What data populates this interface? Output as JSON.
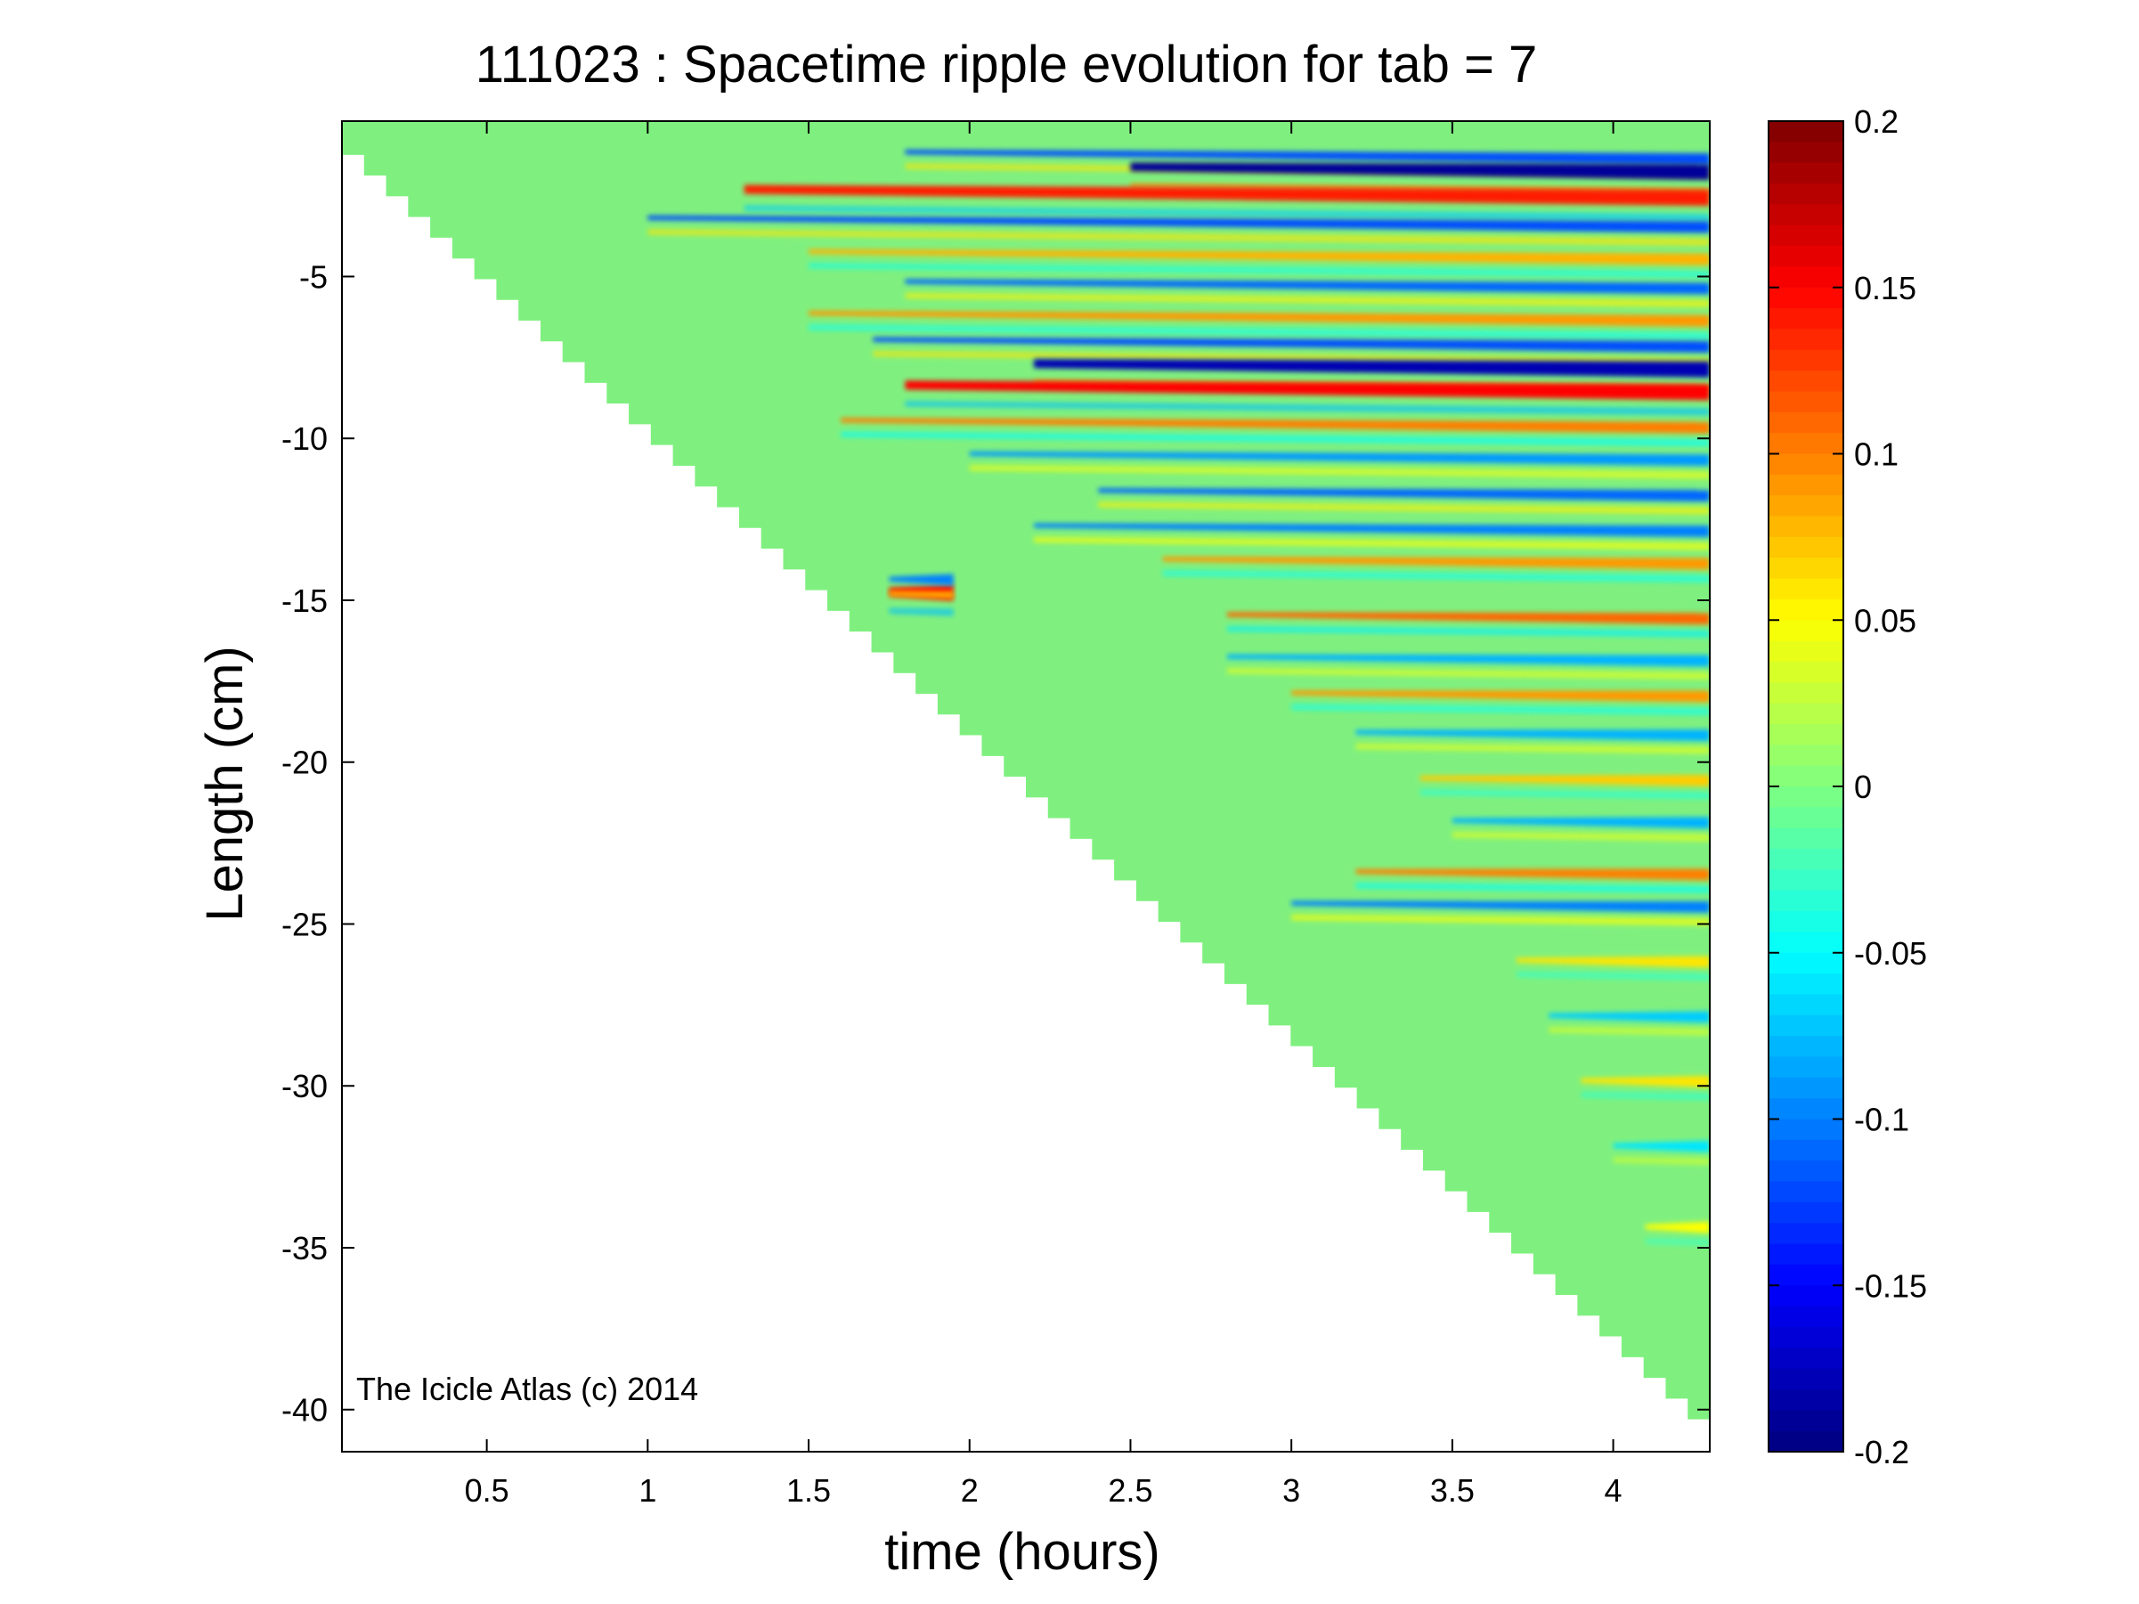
{
  "chart_data": {
    "type": "heatmap",
    "title": "111023 : Spacetime ripple evolution for tab = 7",
    "xlabel": "time (hours)",
    "ylabel": "Length (cm)",
    "xlim": [
      0.05,
      4.3
    ],
    "ylim": [
      -41.3,
      -0.2
    ],
    "x_ticks": [
      0.5,
      1,
      1.5,
      2,
      2.5,
      3,
      3.5,
      4
    ],
    "x_tick_labels": [
      "0.5",
      "1",
      "1.5",
      "2",
      "2.5",
      "3",
      "3.5",
      "4"
    ],
    "y_ticks": [
      -5,
      -10,
      -15,
      -20,
      -25,
      -30,
      -35,
      -40
    ],
    "y_tick_labels": [
      "-5",
      "-10",
      "-15",
      "-20",
      "-25",
      "-30",
      "-35",
      "-40"
    ],
    "colorbar": {
      "colormap": "jet",
      "range": [
        -0.2,
        0.2
      ],
      "ticks": [
        0.2,
        0.15,
        0.1,
        0.05,
        0,
        -0.05,
        -0.1,
        -0.15,
        -0.2
      ],
      "tick_labels": [
        "0.2",
        "0.15",
        "0.1",
        "0.05",
        "0",
        "-0.05",
        "-0.1",
        "-0.15",
        "-0.2"
      ]
    },
    "grid": false,
    "data_boundary": {
      "description": "growing icicle tip",
      "points": [
        [
          0.05,
          -0.6
        ],
        [
          4.3,
          -40.3
        ]
      ]
    },
    "ripple_bands": [
      {
        "y": -1.0,
        "t_start": 1.8,
        "t_end": 4.3,
        "value": -0.12
      },
      {
        "y": -1.4,
        "t_start": 2.5,
        "t_end": 4.3,
        "value": -0.19
      },
      {
        "y": -2.2,
        "t_start": 1.3,
        "t_end": 4.3,
        "value": 0.14
      },
      {
        "y": -3.1,
        "t_start": 1.0,
        "t_end": 4.3,
        "value": -0.12
      },
      {
        "y": -4.1,
        "t_start": 1.5,
        "t_end": 4.3,
        "value": 0.08
      },
      {
        "y": -5.0,
        "t_start": 1.8,
        "t_end": 4.3,
        "value": -0.11
      },
      {
        "y": -6.0,
        "t_start": 1.5,
        "t_end": 4.3,
        "value": 0.09
      },
      {
        "y": -6.8,
        "t_start": 1.7,
        "t_end": 4.3,
        "value": -0.12
      },
      {
        "y": -7.5,
        "t_start": 2.2,
        "t_end": 4.3,
        "value": -0.18
      },
      {
        "y": -8.2,
        "t_start": 1.8,
        "t_end": 4.3,
        "value": 0.15
      },
      {
        "y": -9.3,
        "t_start": 1.6,
        "t_end": 4.3,
        "value": 0.1
      },
      {
        "y": -10.3,
        "t_start": 2.0,
        "t_end": 4.3,
        "value": -0.09
      },
      {
        "y": -11.4,
        "t_start": 2.4,
        "t_end": 4.3,
        "value": -0.11
      },
      {
        "y": -12.5,
        "t_start": 2.2,
        "t_end": 4.3,
        "value": -0.1
      },
      {
        "y": -13.5,
        "t_start": 2.6,
        "t_end": 4.3,
        "value": 0.09
      },
      {
        "y": -14.6,
        "t_start": 1.75,
        "t_end": 1.95,
        "value": 0.15
      },
      {
        "y": -14.2,
        "t_start": 1.75,
        "t_end": 1.95,
        "value": -0.1
      },
      {
        "y": -15.2,
        "t_start": 2.8,
        "t_end": 4.3,
        "value": 0.11
      },
      {
        "y": -16.5,
        "t_start": 2.8,
        "t_end": 4.3,
        "value": -0.08
      },
      {
        "y": -17.6,
        "t_start": 3.0,
        "t_end": 4.3,
        "value": 0.09
      },
      {
        "y": -18.8,
        "t_start": 3.2,
        "t_end": 4.3,
        "value": -0.08
      },
      {
        "y": -20.2,
        "t_start": 3.4,
        "t_end": 4.3,
        "value": 0.07
      },
      {
        "y": -21.5,
        "t_start": 3.5,
        "t_end": 4.3,
        "value": -0.08
      },
      {
        "y": -23.1,
        "t_start": 3.2,
        "t_end": 4.3,
        "value": 0.1
      },
      {
        "y": -24.1,
        "t_start": 3.0,
        "t_end": 4.3,
        "value": -0.1
      },
      {
        "y": -25.8,
        "t_start": 3.7,
        "t_end": 4.3,
        "value": 0.06
      },
      {
        "y": -27.5,
        "t_start": 3.8,
        "t_end": 4.3,
        "value": -0.07
      },
      {
        "y": -29.5,
        "t_start": 3.9,
        "t_end": 4.3,
        "value": 0.06
      },
      {
        "y": -31.5,
        "t_start": 4.0,
        "t_end": 4.3,
        "value": -0.06
      },
      {
        "y": -34.0,
        "t_start": 4.1,
        "t_end": 4.3,
        "value": 0.05
      }
    ]
  },
  "annotation": {
    "text": "The Icicle Atlas (c) 2014"
  },
  "colors": {
    "background": "#ffffff",
    "axes": "#000000",
    "field_base": "#7ff07f"
  }
}
